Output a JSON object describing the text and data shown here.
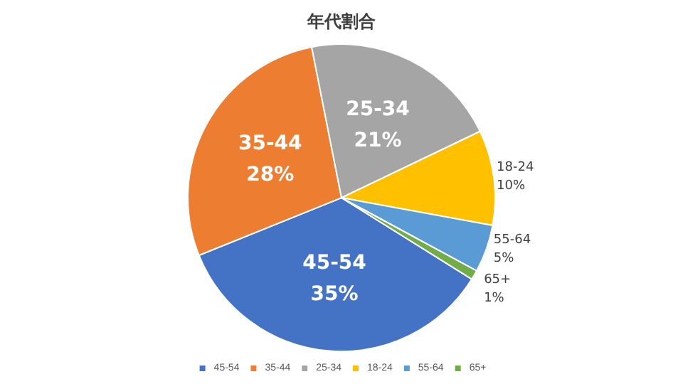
{
  "chart_data": {
    "type": "pie",
    "title": "年代割合",
    "categories": [
      "45-54",
      "35-44",
      "25-34",
      "18-24",
      "55-64",
      "65+"
    ],
    "values": [
      35,
      28,
      21,
      10,
      5,
      1
    ],
    "colors": [
      "#4472c4",
      "#ed7d31",
      "#a5a5a5",
      "#ffc000",
      "#5b9bd5",
      "#70ad47"
    ],
    "value_labels": [
      "35%",
      "28%",
      "21%",
      "10%",
      "5%",
      "1%"
    ],
    "legend": "bottom"
  }
}
